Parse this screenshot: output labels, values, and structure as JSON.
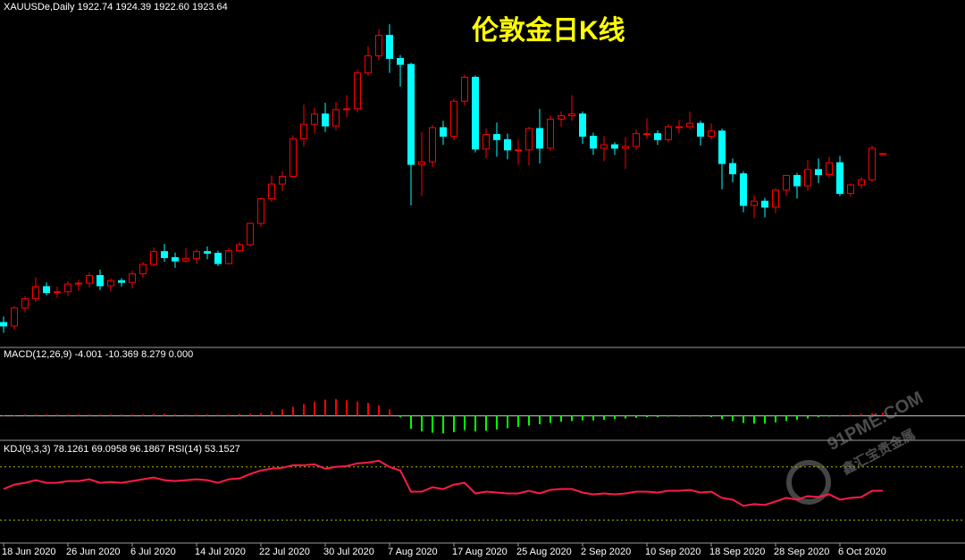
{
  "chart_data": [
    {
      "type": "candlestick",
      "title": "伦敦金日K线",
      "header": "XAUUSDe,Daily 1922.74 1924.39 1922.60 1923.64",
      "watermark": [
        "91PME.COM",
        "鑫汇宝贵金属"
      ],
      "up_color": "#ff0000",
      "down_color": "#00ffff",
      "ylim": [
        1700,
        2095
      ],
      "categories": [
        "18 Jun 2020",
        null,
        null,
        null,
        null,
        null,
        "26 Jun 2020",
        null,
        null,
        null,
        null,
        null,
        "6 Jul 2020",
        null,
        null,
        null,
        null,
        null,
        "14 Jul 2020",
        null,
        null,
        null,
        null,
        null,
        "22 Jul 2020",
        null,
        null,
        null,
        null,
        null,
        "30 Jul 2020",
        null,
        null,
        null,
        null,
        null,
        "7 Aug 2020",
        null,
        null,
        null,
        null,
        null,
        "17 Aug 2020",
        null,
        null,
        null,
        null,
        null,
        "25 Aug 2020",
        null,
        null,
        null,
        null,
        null,
        "2 Sep 2020",
        null,
        null,
        null,
        null,
        null,
        "10 Sep 2020",
        null,
        null,
        null,
        null,
        null,
        "18 Sep 2020",
        null,
        null,
        null,
        null,
        null,
        "28 Sep 2020",
        null,
        null,
        null,
        null,
        null,
        "6 Oct 2020",
        null,
        null,
        null,
        null
      ],
      "ohlc": [
        [
          1726,
          1733,
          1714,
          1722
        ],
        [
          1722,
          1745,
          1718,
          1743
        ],
        [
          1743,
          1757,
          1738,
          1754
        ],
        [
          1754,
          1779,
          1750,
          1768
        ],
        [
          1768,
          1773,
          1758,
          1761
        ],
        [
          1761,
          1768,
          1755,
          1762
        ],
        [
          1762,
          1774,
          1757,
          1771
        ],
        [
          1771,
          1776,
          1763,
          1772
        ],
        [
          1772,
          1785,
          1767,
          1781
        ],
        [
          1781,
          1788,
          1764,
          1769
        ],
        [
          1769,
          1778,
          1762,
          1775
        ],
        [
          1775,
          1778,
          1768,
          1773
        ],
        [
          1773,
          1787,
          1766,
          1783
        ],
        [
          1783,
          1797,
          1778,
          1794
        ],
        [
          1794,
          1814,
          1792,
          1809
        ],
        [
          1809,
          1818,
          1797,
          1802
        ],
        [
          1802,
          1808,
          1790,
          1798
        ],
        [
          1798,
          1813,
          1796,
          1801
        ],
        [
          1801,
          1812,
          1795,
          1809
        ],
        [
          1809,
          1815,
          1800,
          1807
        ],
        [
          1807,
          1810,
          1792,
          1795
        ],
        [
          1795,
          1813,
          1794,
          1810
        ],
        [
          1810,
          1820,
          1808,
          1817
        ],
        [
          1817,
          1843,
          1815,
          1842
        ],
        [
          1842,
          1872,
          1838,
          1871
        ],
        [
          1871,
          1898,
          1867,
          1888
        ],
        [
          1888,
          1903,
          1880,
          1897
        ],
        [
          1897,
          1945,
          1897,
          1941
        ],
        [
          1941,
          1981,
          1932,
          1958
        ],
        [
          1958,
          1977,
          1947,
          1970
        ],
        [
          1970,
          1983,
          1949,
          1956
        ],
        [
          1956,
          1984,
          1951,
          1975
        ],
        [
          1975,
          1992,
          1966,
          1976
        ],
        [
          1976,
          2022,
          1972,
          2018
        ],
        [
          2018,
          2049,
          2015,
          2038
        ],
        [
          2038,
          2069,
          2033,
          2062
        ],
        [
          2062,
          2075,
          2018,
          2035
        ],
        [
          2035,
          2039,
          2002,
          2028
        ],
        [
          2028,
          2030,
          1863,
          1911
        ],
        [
          1911,
          1949,
          1874,
          1914
        ],
        [
          1914,
          1957,
          1908,
          1954
        ],
        [
          1954,
          1962,
          1934,
          1944
        ],
        [
          1944,
          1988,
          1939,
          1985
        ],
        [
          1985,
          2016,
          1980,
          2013
        ],
        [
          2013,
          2015,
          1925,
          1929
        ],
        [
          1929,
          1953,
          1918,
          1946
        ],
        [
          1946,
          1960,
          1920,
          1940
        ],
        [
          1940,
          1947,
          1917,
          1928
        ],
        [
          1928,
          1940,
          1911,
          1928
        ],
        [
          1928,
          1955,
          1910,
          1953
        ],
        [
          1953,
          1976,
          1912,
          1930
        ],
        [
          1930,
          1968,
          1927,
          1964
        ],
        [
          1964,
          1973,
          1955,
          1968
        ],
        [
          1968,
          1992,
          1962,
          1970
        ],
        [
          1970,
          1973,
          1935,
          1944
        ],
        [
          1944,
          1948,
          1922,
          1930
        ],
        [
          1930,
          1944,
          1915,
          1934
        ],
        [
          1934,
          1937,
          1922,
          1930
        ],
        [
          1930,
          1943,
          1906,
          1932
        ],
        [
          1932,
          1952,
          1928,
          1947
        ],
        [
          1947,
          1965,
          1941,
          1947
        ],
        [
          1947,
          1951,
          1934,
          1940
        ],
        [
          1940,
          1958,
          1937,
          1955
        ],
        [
          1955,
          1963,
          1947,
          1955
        ],
        [
          1955,
          1973,
          1952,
          1959
        ],
        [
          1959,
          1962,
          1933,
          1944
        ],
        [
          1944,
          1959,
          1940,
          1950
        ],
        [
          1950,
          1953,
          1882,
          1912
        ],
        [
          1912,
          1918,
          1890,
          1900
        ],
        [
          1900,
          1903,
          1855,
          1863
        ],
        [
          1863,
          1875,
          1848,
          1868
        ],
        [
          1868,
          1872,
          1849,
          1861
        ],
        [
          1861,
          1883,
          1854,
          1881
        ],
        [
          1881,
          1899,
          1874,
          1898
        ],
        [
          1898,
          1901,
          1871,
          1886
        ],
        [
          1886,
          1916,
          1880,
          1905
        ],
        [
          1905,
          1918,
          1889,
          1899
        ],
        [
          1899,
          1920,
          1895,
          1913
        ],
        [
          1913,
          1921,
          1874,
          1877
        ],
        [
          1877,
          1889,
          1873,
          1887
        ],
        [
          1887,
          1896,
          1883,
          1893
        ],
        [
          1893,
          1933,
          1890,
          1930
        ],
        [
          1922.74,
          1924.39,
          1922.6,
          1923.64
        ]
      ]
    },
    {
      "type": "bar",
      "header": "MACD(12,26,9) -4.001 -10.369 8.279 0.000",
      "ylim": [
        -35,
        85
      ],
      "up_color": "#ff0000",
      "down_color": "#00ff00",
      "values": [
        1,
        1,
        2,
        2,
        2,
        2,
        2,
        2,
        2,
        2,
        2,
        2,
        2,
        2,
        3,
        3,
        2,
        2,
        2,
        2,
        2,
        2,
        3,
        3,
        4,
        7,
        10,
        14,
        18,
        22,
        25,
        26,
        24,
        22,
        20,
        16,
        10,
        -2,
        -20,
        -24,
        -26,
        -27,
        -25,
        -22,
        -24,
        -23,
        -21,
        -19,
        -17,
        -15,
        -13,
        -11,
        -9,
        -8,
        -7,
        -7,
        -6,
        -5,
        -4,
        -3,
        -2,
        -2,
        -1,
        -1,
        -1,
        -1,
        -2,
        -5,
        -8,
        -11,
        -12,
        -12,
        -10,
        -8,
        -6,
        -4,
        -2,
        -1,
        1,
        2,
        3,
        4,
        5
      ]
    },
    {
      "type": "line",
      "header": "KDJ(9,3,3) 78.1261 69.0958 96.1867  RSI(14) 53.1527",
      "ylim": [
        0,
        100
      ],
      "levels": [
        80,
        20
      ],
      "level_color": "#b5b500",
      "color": "#ff1a4a",
      "values": [
        55,
        60,
        62,
        65,
        62,
        62,
        64,
        64,
        66,
        62,
        63,
        62,
        64,
        66,
        68,
        65,
        64,
        65,
        66,
        65,
        62,
        66,
        67,
        72,
        76,
        78,
        79,
        82,
        82,
        83,
        78,
        80,
        81,
        84,
        85,
        87,
        80,
        76,
        52,
        52,
        57,
        55,
        60,
        62,
        50,
        52,
        51,
        50,
        50,
        53,
        50,
        54,
        55,
        55,
        51,
        49,
        50,
        49,
        50,
        52,
        52,
        51,
        53,
        53,
        54,
        51,
        52,
        45,
        43,
        36,
        38,
        37,
        41,
        45,
        43,
        47,
        46,
        49,
        43,
        45,
        46,
        53,
        53
      ]
    }
  ]
}
